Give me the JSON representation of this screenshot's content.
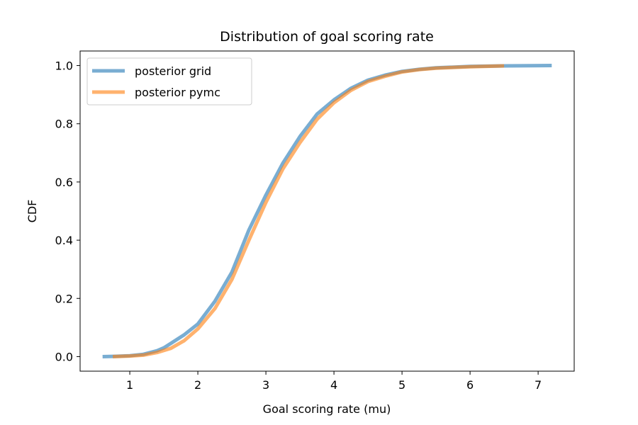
{
  "chart_data": {
    "type": "line",
    "title": "Distribution of goal scoring rate",
    "xlabel": "Goal scoring rate (mu)",
    "ylabel": "CDF",
    "xlim": [
      0.27,
      7.53
    ],
    "ylim": [
      -0.05,
      1.05
    ],
    "xticks": [
      1,
      2,
      3,
      4,
      5,
      6,
      7
    ],
    "yticks": [
      0.0,
      0.2,
      0.4,
      0.6,
      0.8,
      1.0
    ],
    "xtick_labels": [
      "1",
      "2",
      "3",
      "4",
      "5",
      "6",
      "7"
    ],
    "ytick_labels": [
      "0.0",
      "0.2",
      "0.4",
      "0.6",
      "0.8",
      "1.0"
    ],
    "grid": false,
    "legend_position": "top-left",
    "series": [
      {
        "name": "posterior grid",
        "color": "#1f77b4",
        "x": [
          0.6,
          0.8,
          1.0,
          1.2,
          1.4,
          1.5,
          1.6,
          1.8,
          2.0,
          2.25,
          2.5,
          2.75,
          3.0,
          3.25,
          3.5,
          3.75,
          4.0,
          4.25,
          4.5,
          4.75,
          5.0,
          5.25,
          5.5,
          6.0,
          6.5,
          7.2
        ],
        "y": [
          0.0,
          0.001,
          0.003,
          0.008,
          0.02,
          0.03,
          0.045,
          0.075,
          0.112,
          0.19,
          0.29,
          0.435,
          0.555,
          0.665,
          0.756,
          0.833,
          0.882,
          0.922,
          0.95,
          0.967,
          0.98,
          0.987,
          0.992,
          0.997,
          0.999,
          1.0
        ]
      },
      {
        "name": "posterior pymc",
        "color": "#ff7f0e",
        "x": [
          0.75,
          1.0,
          1.2,
          1.4,
          1.6,
          1.8,
          2.0,
          2.25,
          2.5,
          2.75,
          3.0,
          3.25,
          3.5,
          3.75,
          4.0,
          4.25,
          4.5,
          4.75,
          5.0,
          5.25,
          5.5,
          6.0,
          6.5
        ],
        "y": [
          0.0,
          0.002,
          0.005,
          0.014,
          0.028,
          0.055,
          0.095,
          0.165,
          0.265,
          0.4,
          0.53,
          0.645,
          0.735,
          0.815,
          0.872,
          0.915,
          0.945,
          0.963,
          0.978,
          0.986,
          0.991,
          0.996,
          0.999
        ]
      }
    ]
  }
}
